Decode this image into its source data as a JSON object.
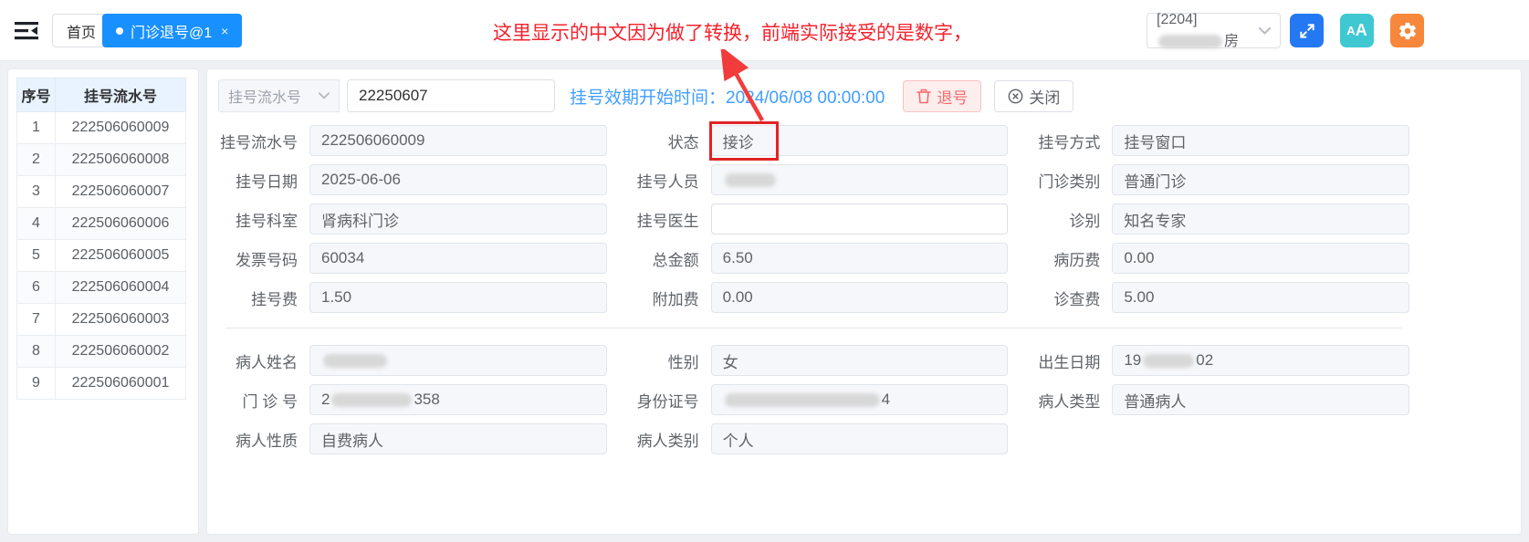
{
  "topbar": {
    "home_tab": "首页",
    "active_tab": {
      "label": "门诊退号@1",
      "close": "×",
      "bg": "#1890ff"
    },
    "workspace": {
      "prefix": "[2204]",
      "suffix": "房"
    },
    "accent_buttons": {
      "expand_bg": "#2478f2",
      "fontsize_bg": "#3fc8d2",
      "fontsize_label_small": "A",
      "fontsize_label_big": "A",
      "settings_bg": "#f6873b"
    }
  },
  "annotation": {
    "text": "这里显示的中文因为做了转换，前端实际接受的是数字，",
    "color": "#f5222d"
  },
  "sidebar": {
    "columns": [
      "序号",
      "挂号流水号"
    ],
    "rows": [
      [
        "1",
        "222506060009"
      ],
      [
        "2",
        "222506060008"
      ],
      [
        "3",
        "222506060007"
      ],
      [
        "4",
        "222506060006"
      ],
      [
        "5",
        "222506060005"
      ],
      [
        "6",
        "222506060004"
      ],
      [
        "7",
        "222506060003"
      ],
      [
        "8",
        "222506060002"
      ],
      [
        "9",
        "222506060001"
      ]
    ]
  },
  "toolbar": {
    "field_select": "挂号流水号",
    "serial_input": "22250607",
    "validity_label": "挂号效期开始时间：",
    "validity_value": "2024/06/08 00:00:00",
    "refund_button": "退号",
    "close_button": "关闭"
  },
  "form": {
    "rows": [
      {
        "cells": [
          {
            "label": "挂号流水号",
            "segments": [
              {
                "t": "222506060009"
              }
            ]
          },
          {
            "label": "状态",
            "segments": [
              {
                "t": "接诊"
              }
            ],
            "highlight": true
          },
          {
            "label": "挂号方式",
            "segments": [
              {
                "t": "挂号窗口"
              }
            ]
          }
        ]
      },
      {
        "cells": [
          {
            "label": "挂号日期",
            "segments": [
              {
                "t": "2025-06-06"
              }
            ]
          },
          {
            "label": "挂号人员",
            "segments": [
              {
                "r": 56
              }
            ]
          },
          {
            "label": "门诊类别",
            "segments": [
              {
                "t": "普通门诊"
              }
            ]
          }
        ]
      },
      {
        "cells": [
          {
            "label": "挂号科室",
            "segments": [
              {
                "t": "肾病科门诊"
              }
            ]
          },
          {
            "label": "挂号医生",
            "segments": [],
            "white": true
          },
          {
            "label": "诊别",
            "segments": [
              {
                "t": "知名专家"
              }
            ]
          }
        ]
      },
      {
        "cells": [
          {
            "label": "发票号码",
            "segments": [
              {
                "t": "60034"
              }
            ]
          },
          {
            "label": "总金额",
            "segments": [
              {
                "t": "6.50"
              }
            ]
          },
          {
            "label": "病历费",
            "segments": [
              {
                "t": "0.00"
              }
            ]
          }
        ]
      },
      {
        "cells": [
          {
            "label": "挂号费",
            "segments": [
              {
                "t": "1.50"
              }
            ]
          },
          {
            "label": "附加费",
            "segments": [
              {
                "t": "0.00"
              }
            ]
          },
          {
            "label": "诊查费",
            "segments": [
              {
                "t": "5.00"
              }
            ]
          }
        ]
      },
      {
        "divider_before": true,
        "cells": [
          {
            "label": "病人姓名",
            "segments": [
              {
                "r": 70
              }
            ]
          },
          {
            "label": "性别",
            "segments": [
              {
                "t": "女"
              }
            ]
          },
          {
            "label": "出生日期",
            "segments": [
              {
                "t": "19"
              },
              {
                "r": 56
              },
              {
                "t": "02"
              }
            ]
          }
        ]
      },
      {
        "cells": [
          {
            "label": "门 诊 号",
            "segments": [
              {
                "t": "2"
              },
              {
                "r": 88
              },
              {
                "t": "358"
              }
            ]
          },
          {
            "label": "身份证号",
            "segments": [
              {
                "r": 170
              },
              {
                "t": "4"
              }
            ]
          },
          {
            "label": "病人类型",
            "segments": [
              {
                "t": "普通病人"
              }
            ]
          }
        ]
      },
      {
        "cells": [
          {
            "label": "病人性质",
            "segments": [
              {
                "t": "自费病人"
              }
            ]
          },
          {
            "label": "病人类别",
            "segments": [
              {
                "t": "个人"
              }
            ]
          },
          null
        ]
      }
    ]
  }
}
